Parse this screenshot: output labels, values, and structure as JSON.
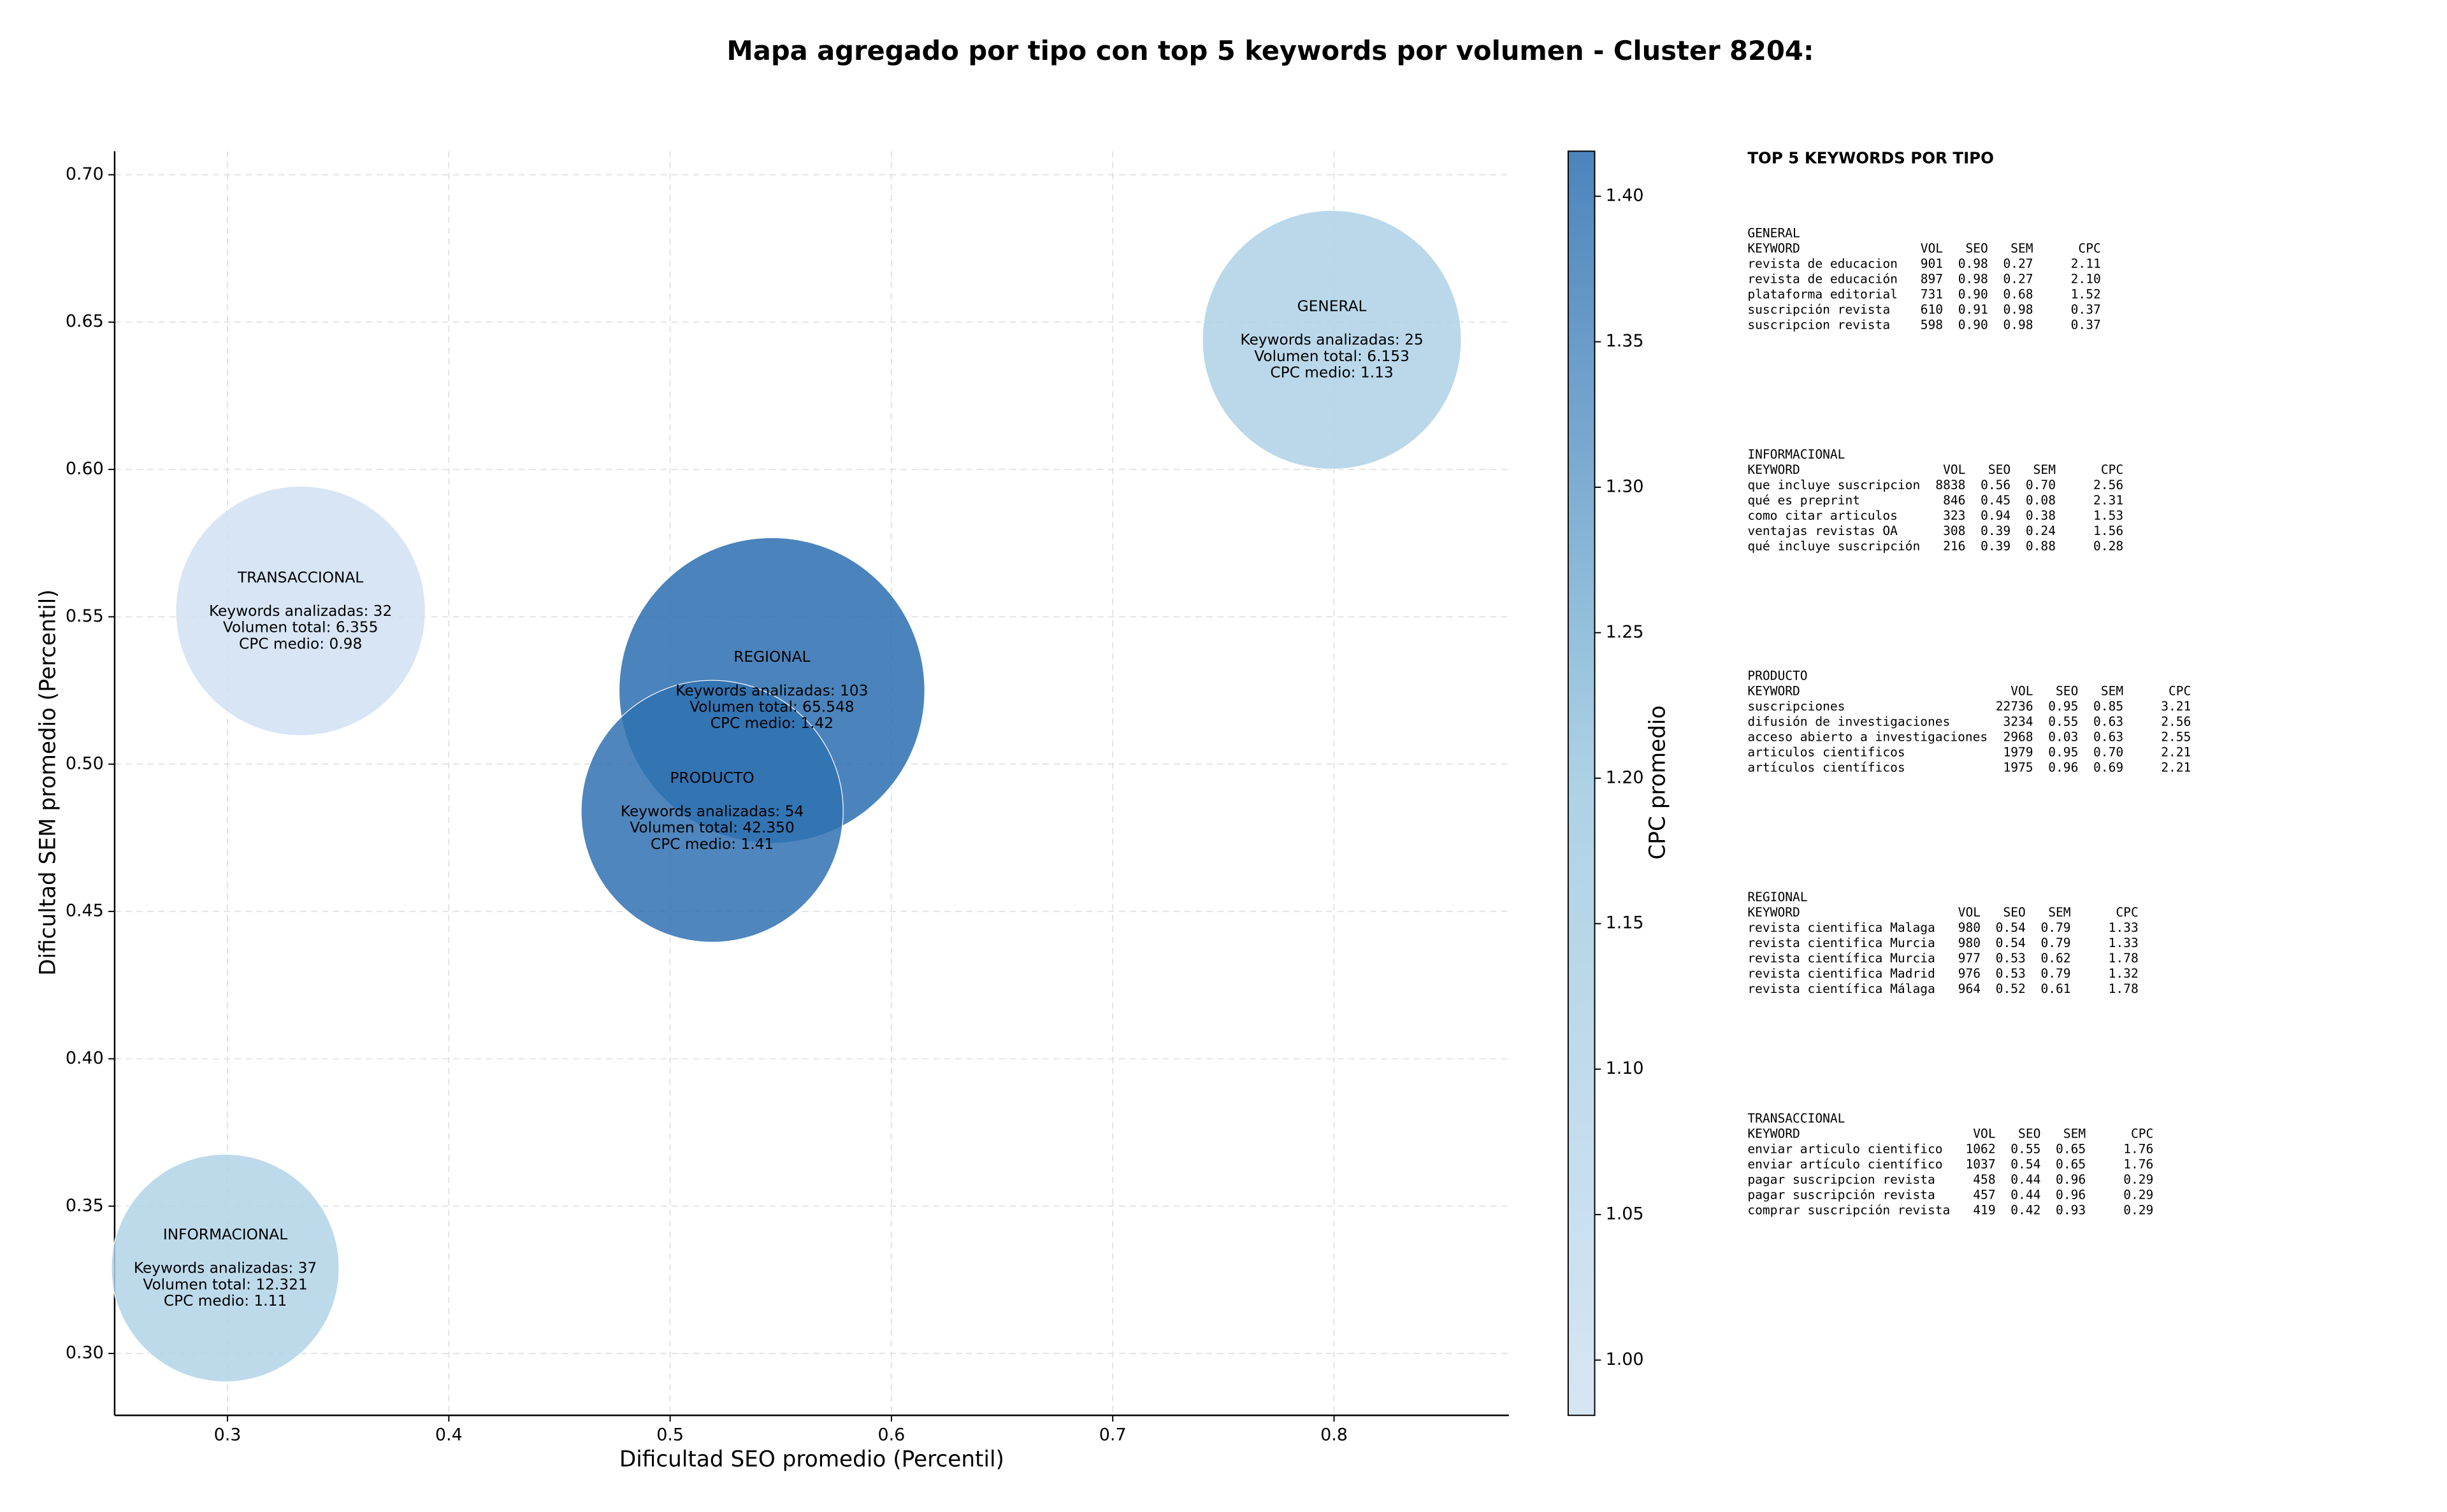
{
  "chart_data": {
    "type": "bubble",
    "title": "Mapa agregado por tipo con top 5 keywords por volumen - Cluster 8204:",
    "xlabel": "Dificultad SEO promedio (Percentil)",
    "ylabel": "Dificultad SEM promedio (Percentil)",
    "colorbar_label": "CPC promedio",
    "categories": [
      "GENERAL",
      "INFORMACIONAL",
      "REGIONAL",
      "PRODUCTO",
      "TRANSACCIONAL"
    ],
    "x": [
      0.799,
      0.299,
      0.546,
      0.519,
      0.333
    ],
    "values": [
      0.644,
      0.329,
      0.525,
      0.484,
      0.552
    ],
    "sizes": [
      6889,
      5329,
      9604,
      7056,
      6400
    ],
    "cpc": [
      1.13,
      1.11,
      1.42,
      1.41,
      0.98
    ],
    "annotations": [
      [
        "Keywords analizadas: 25",
        "Volumen total: 6.153",
        "CPC medio: 1.13"
      ],
      [
        "Keywords analizadas: 37",
        "Volumen total: 12.321",
        "CPC medio: 1.11"
      ],
      [
        "Keywords analizadas: 103",
        "Volumen total: 65.548",
        "CPC medio: 1.42"
      ],
      [
        "Keywords analizadas: 54",
        "Volumen total: 42.350",
        "CPC medio: 1.41"
      ],
      [
        "Keywords analizadas: 32",
        "Volumen total: 6.355",
        "CPC medio: 0.98"
      ]
    ],
    "xlim": [
      0.249,
      0.879
    ],
    "ylim": [
      0.279,
      0.708
    ],
    "xticks": [
      0.3,
      0.4,
      0.5,
      0.6,
      0.7,
      0.8
    ],
    "yticks": [
      {
        "value": 0.3,
        "label": "0.30"
      },
      {
        "value": 0.35,
        "label": "0.35"
      },
      {
        "value": 0.4,
        "label": "0.40"
      },
      {
        "value": 0.45,
        "label": "0.45"
      },
      {
        "value": 0.5,
        "label": "0.50"
      },
      {
        "value": 0.55,
        "label": "0.55"
      },
      {
        "value": 0.6,
        "label": "0.60"
      },
      {
        "value": 0.65,
        "label": "0.65"
      },
      {
        "value": 0.7,
        "label": "0.70"
      }
    ],
    "clim": [
      0.981,
      1.4155
    ],
    "cticks": [
      {
        "value": 1.0,
        "label": "1.00"
      },
      1.05,
      {
        "value": 1.1,
        "label": "1.10"
      },
      1.15,
      {
        "value": 1.2,
        "label": "1.20"
      },
      1.25,
      {
        "value": 1.3,
        "label": "1.30"
      },
      1.35,
      {
        "value": 1.4,
        "label": "1.40"
      }
    ],
    "cmap_colors": [
      "#d0e1f2",
      "#9ecae1",
      "#2c6fb0"
    ],
    "grid": true
  },
  "panel": {
    "title": "TOP 5 KEYWORDS POR TIPO",
    "header": [
      "KEYWORD",
      "VOL",
      "SEO",
      "SEM",
      "CPC"
    ],
    "sections": [
      {
        "name": "GENERAL",
        "rows": [
          [
            "revista de educacion",
            "901",
            "0.98",
            "0.27",
            "2.11"
          ],
          [
            "revista de educación",
            "897",
            "0.98",
            "0.27",
            "2.10"
          ],
          [
            "plataforma editorial",
            "731",
            "0.90",
            "0.68",
            "1.52"
          ],
          [
            "suscripción revista",
            "610",
            "0.91",
            "0.98",
            "0.37"
          ],
          [
            "suscripcion revista",
            "598",
            "0.90",
            "0.98",
            "0.37"
          ]
        ]
      },
      {
        "name": "INFORMACIONAL",
        "rows": [
          [
            "que incluye suscripcion",
            "8838",
            "0.56",
            "0.70",
            "2.56"
          ],
          [
            "qué es preprint",
            "846",
            "0.45",
            "0.08",
            "2.31"
          ],
          [
            "como citar articulos",
            "323",
            "0.94",
            "0.38",
            "1.53"
          ],
          [
            "ventajas revistas OA",
            "308",
            "0.39",
            "0.24",
            "1.56"
          ],
          [
            "qué incluye suscripción",
            "216",
            "0.39",
            "0.88",
            "0.28"
          ]
        ]
      },
      {
        "name": "PRODUCTO",
        "rows": [
          [
            "suscripciones",
            "22736",
            "0.95",
            "0.85",
            "3.21"
          ],
          [
            "difusión de investigaciones",
            "3234",
            "0.55",
            "0.63",
            "2.56"
          ],
          [
            "acceso abierto a investigaciones",
            "2968",
            "0.03",
            "0.63",
            "2.55"
          ],
          [
            "articulos cientificos",
            "1979",
            "0.95",
            "0.70",
            "2.21"
          ],
          [
            "artículos científicos",
            "1975",
            "0.96",
            "0.69",
            "2.21"
          ]
        ]
      },
      {
        "name": "REGIONAL",
        "rows": [
          [
            "revista cientifica Malaga",
            "980",
            "0.54",
            "0.79",
            "1.33"
          ],
          [
            "revista cientifica Murcia",
            "980",
            "0.54",
            "0.79",
            "1.33"
          ],
          [
            "revista científica Murcia",
            "977",
            "0.53",
            "0.62",
            "1.78"
          ],
          [
            "revista cientifica Madrid",
            "976",
            "0.53",
            "0.79",
            "1.32"
          ],
          [
            "revista científica Málaga",
            "964",
            "0.52",
            "0.61",
            "1.78"
          ]
        ]
      },
      {
        "name": "TRANSACCIONAL",
        "rows": [
          [
            "enviar articulo cientifico",
            "1062",
            "0.55",
            "0.65",
            "1.76"
          ],
          [
            "enviar artículo científico",
            "1037",
            "0.54",
            "0.65",
            "1.76"
          ],
          [
            "pagar suscripcion revista",
            "458",
            "0.44",
            "0.96",
            "0.29"
          ],
          [
            "pagar suscripción revista",
            "457",
            "0.44",
            "0.96",
            "0.29"
          ],
          [
            "comprar suscripción revista",
            "419",
            "0.42",
            "0.93",
            "0.29"
          ]
        ]
      }
    ]
  }
}
